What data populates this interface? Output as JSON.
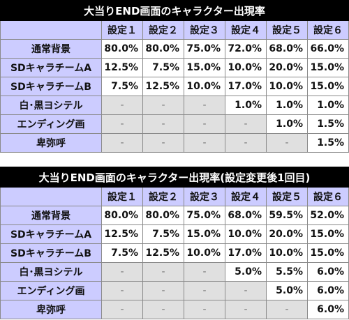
{
  "table1": {
    "title": "大当りEND画面のキャラクター出現率",
    "columns": [
      "設定１",
      "設定２",
      "設定３",
      "設定４",
      "設定５",
      "設定６"
    ],
    "rows": [
      {
        "label": "通常背景",
        "values": [
          "80.0%",
          "80.0%",
          "75.0%",
          "72.0%",
          "68.0%",
          "66.0%"
        ]
      },
      {
        "label": "SDキャラチームA",
        "values": [
          "12.5%",
          "7.5%",
          "15.0%",
          "10.0%",
          "20.0%",
          "15.0%"
        ]
      },
      {
        "label": "SDキャラチームB",
        "values": [
          "7.5%",
          "12.5%",
          "10.0%",
          "17.0%",
          "10.0%",
          "15.0%"
        ]
      },
      {
        "label": "白･黒ヨシテル",
        "values": [
          "-",
          "-",
          "-",
          "1.0%",
          "1.0%",
          "1.0%"
        ]
      },
      {
        "label": "エンディング画",
        "values": [
          "-",
          "-",
          "-",
          "-",
          "1.0%",
          "1.5%"
        ]
      },
      {
        "label": "卑弥呼",
        "values": [
          "-",
          "-",
          "-",
          "-",
          "-",
          "1.5%"
        ]
      }
    ]
  },
  "table2": {
    "title": "大当りEND画面のキャラクター出現率(設定変更後1回目)",
    "columns": [
      "設定１",
      "設定２",
      "設定３",
      "設定４",
      "設定５",
      "設定６"
    ],
    "rows": [
      {
        "label": "通常背景",
        "values": [
          "80.0%",
          "80.0%",
          "75.0%",
          "68.0%",
          "59.5%",
          "52.0%"
        ]
      },
      {
        "label": "SDキャラチームA",
        "values": [
          "12.5%",
          "7.5%",
          "15.0%",
          "10.0%",
          "20.0%",
          "15.0%"
        ]
      },
      {
        "label": "SDキャラチームB",
        "values": [
          "7.5%",
          "12.5%",
          "10.0%",
          "17.0%",
          "10.0%",
          "15.0%"
        ]
      },
      {
        "label": "白･黒ヨシテル",
        "values": [
          "-",
          "-",
          "-",
          "5.0%",
          "5.5%",
          "6.0%"
        ]
      },
      {
        "label": "エンディング画",
        "values": [
          "-",
          "-",
          "-",
          "-",
          "5.0%",
          "6.0%"
        ]
      },
      {
        "label": "卑弥呼",
        "values": [
          "-",
          "-",
          "-",
          "-",
          "-",
          "6.0%"
        ]
      }
    ]
  }
}
